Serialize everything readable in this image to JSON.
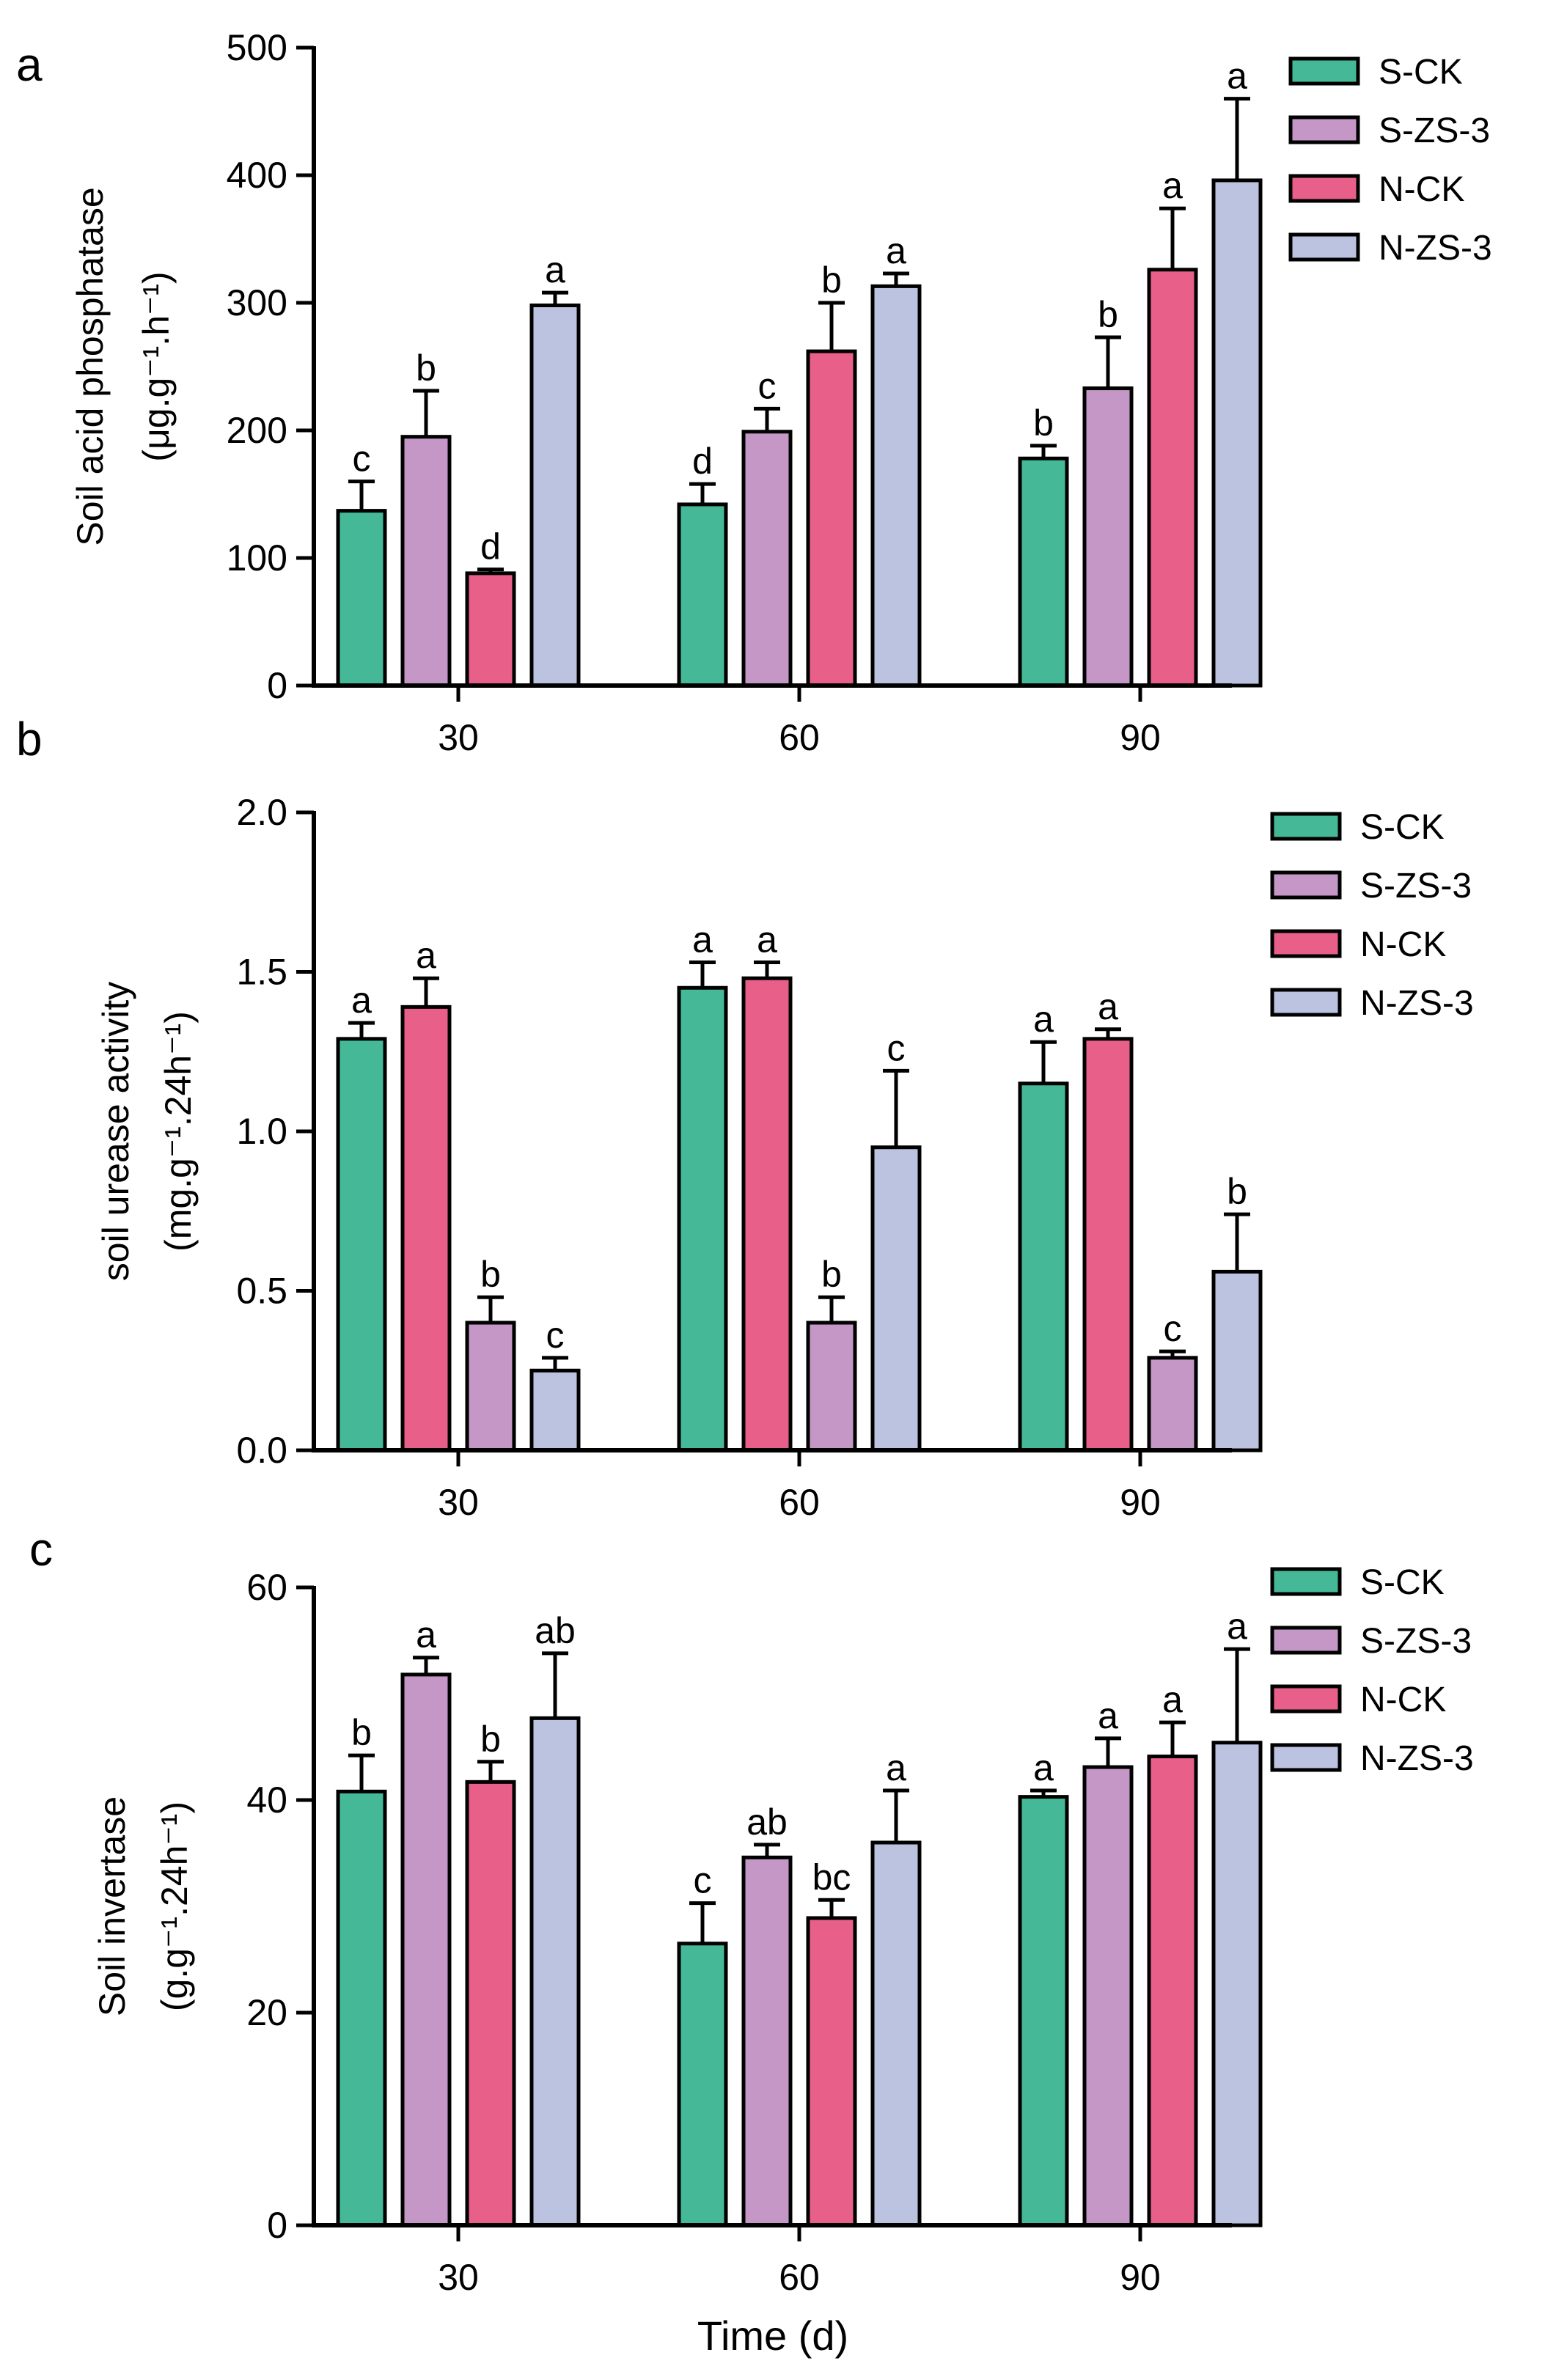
{
  "colors": {
    "S-CK": "#45B997",
    "S-ZS-3": "#C497C6",
    "N-CK": "#E8608A",
    "N-ZS-3": "#BCC3E1"
  },
  "chart_data": [
    {
      "panel": "a",
      "type": "bar",
      "categories": [
        "30",
        "60",
        "90"
      ],
      "ylim": [
        0,
        500
      ],
      "yticks": [
        "0",
        "100",
        "200",
        "300",
        "400",
        "500"
      ],
      "ylabel_line1": "Soil acid phosphatase",
      "ylabel_line2": "(μg.g⁻¹.h⁻¹)",
      "xlabel": "",
      "legend": [
        "S-CK",
        "S-ZS-3",
        "N-CK",
        "N-ZS-3"
      ],
      "series": [
        {
          "name": "S-CK",
          "values": [
            137,
            142,
            178
          ],
          "errors": [
            23,
            16,
            10
          ],
          "letters": [
            "c",
            "d",
            "b"
          ]
        },
        {
          "name": "S-ZS-3",
          "values": [
            195,
            199,
            233
          ],
          "errors": [
            36,
            18,
            40
          ],
          "letters": [
            "b",
            "c",
            "b"
          ]
        },
        {
          "name": "N-CK",
          "values": [
            88,
            262,
            326
          ],
          "errors": [
            3,
            38,
            48
          ],
          "letters": [
            "d",
            "b",
            "a"
          ]
        },
        {
          "name": "N-ZS-3",
          "values": [
            298,
            313,
            396
          ],
          "errors": [
            10,
            10,
            64
          ],
          "letters": [
            "a",
            "a",
            "a"
          ]
        }
      ]
    },
    {
      "panel": "b",
      "type": "bar",
      "categories": [
        "30",
        "60",
        "90"
      ],
      "ylim": [
        0,
        2.0
      ],
      "yticks": [
        "0.0",
        "0.5",
        "1.0",
        "1.5",
        "2.0"
      ],
      "ylabel_line1": "soil urease activity",
      "ylabel_line2": "(mg.g⁻¹.24h⁻¹)",
      "xlabel": "",
      "legend": [
        "S-CK",
        "S-ZS-3",
        "N-CK",
        "N-ZS-3"
      ],
      "series": [
        {
          "name": "S-CK",
          "values": [
            1.29,
            1.45,
            1.15
          ],
          "errors": [
            0.05,
            0.08,
            0.13
          ],
          "letters": [
            "a",
            "a",
            "a"
          ]
        },
        {
          "name": "N-CK",
          "values": [
            1.39,
            1.48,
            1.29
          ],
          "errors": [
            0.09,
            0.05,
            0.03
          ],
          "letters": [
            "a",
            "a",
            "a"
          ]
        },
        {
          "name": "S-ZS-3",
          "values": [
            0.4,
            0.4,
            0.29
          ],
          "errors": [
            0.08,
            0.08,
            0.02
          ],
          "letters": [
            "b",
            "b",
            "c"
          ]
        },
        {
          "name": "N-ZS-3",
          "values": [
            0.25,
            0.95,
            0.56
          ],
          "errors": [
            0.04,
            0.24,
            0.18
          ],
          "letters": [
            "c",
            "c",
            "b"
          ]
        }
      ]
    },
    {
      "panel": "c",
      "type": "bar",
      "categories": [
        "30",
        "60",
        "90"
      ],
      "ylim": [
        0,
        60
      ],
      "yticks": [
        "0",
        "20",
        "40",
        "60"
      ],
      "ylabel_line1": "Soil invertase",
      "ylabel_line2": "(g.g⁻¹.24h⁻¹)",
      "xlabel": "Time (d)",
      "legend": [
        "S-CK",
        "S-ZS-3",
        "N-CK",
        "N-ZS-3"
      ],
      "series": [
        {
          "name": "S-CK",
          "values": [
            40.8,
            26.5,
            40.3
          ],
          "errors": [
            3.4,
            3.8,
            0.6
          ],
          "letters": [
            "b",
            "c",
            "a"
          ]
        },
        {
          "name": "S-ZS-3",
          "values": [
            51.8,
            34.6,
            43.1
          ],
          "errors": [
            1.6,
            1.2,
            2.7
          ],
          "letters": [
            "a",
            "ab",
            "a"
          ]
        },
        {
          "name": "N-CK",
          "values": [
            41.7,
            28.9,
            44.1
          ],
          "errors": [
            1.9,
            1.7,
            3.2
          ],
          "letters": [
            "b",
            "bc",
            "a"
          ]
        },
        {
          "name": "N-ZS-3",
          "values": [
            47.7,
            36.0,
            45.4
          ],
          "errors": [
            6.1,
            4.9,
            8.8
          ],
          "letters": [
            "ab",
            "a",
            "a"
          ]
        }
      ]
    }
  ]
}
